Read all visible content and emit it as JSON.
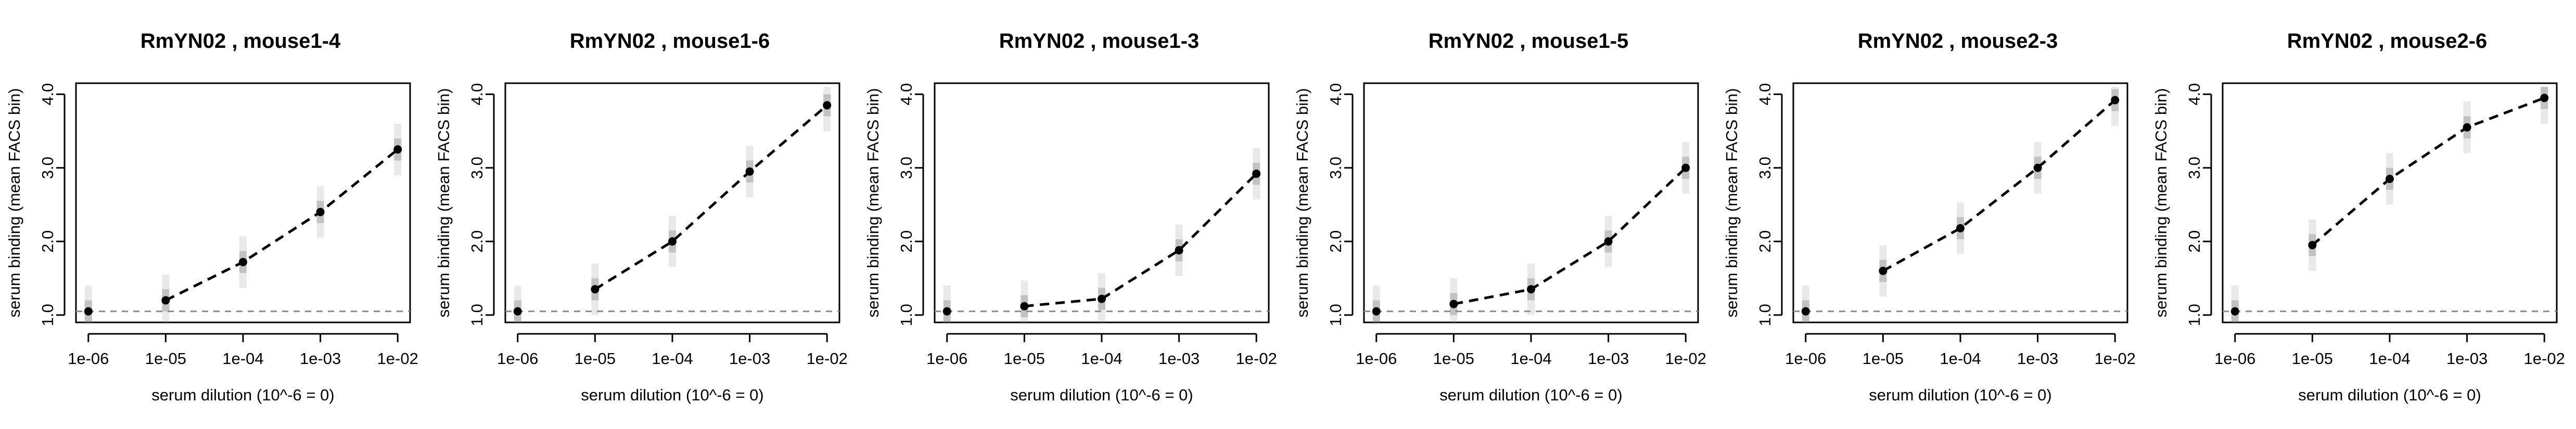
{
  "chart_data": [
    {
      "type": "line",
      "title": "RmYN02 , mouse1-4",
      "xlabel": "serum dilution (10^-6 = 0)",
      "ylabel": "serum binding (mean FACS bin)",
      "x": [
        1e-06,
        1e-05,
        0.0001,
        0.001,
        0.01
      ],
      "x_ticks": [
        "1e-06",
        "1e-05",
        "1e-04",
        "1e-03",
        "1e-02"
      ],
      "x_scale": "log",
      "y_ticks": [
        "1.0",
        "2.0",
        "3.0",
        "4.0"
      ],
      "ylim": [
        0.9,
        4.15
      ],
      "baseline": 1.05,
      "values": [
        1.05,
        1.2,
        1.72,
        2.4,
        3.25
      ]
    },
    {
      "type": "line",
      "title": "RmYN02 , mouse1-6",
      "xlabel": "serum dilution (10^-6 = 0)",
      "ylabel": "serum binding (mean FACS bin)",
      "x": [
        1e-06,
        1e-05,
        0.0001,
        0.001,
        0.01
      ],
      "x_ticks": [
        "1e-06",
        "1e-05",
        "1e-04",
        "1e-03",
        "1e-02"
      ],
      "x_scale": "log",
      "y_ticks": [
        "1.0",
        "2.0",
        "3.0",
        "4.0"
      ],
      "ylim": [
        0.9,
        4.15
      ],
      "baseline": 1.05,
      "values": [
        1.05,
        1.35,
        2.0,
        2.95,
        3.85
      ]
    },
    {
      "type": "line",
      "title": "RmYN02 , mouse1-3",
      "xlabel": "serum dilution (10^-6 = 0)",
      "ylabel": "serum binding (mean FACS bin)",
      "x": [
        1e-06,
        1e-05,
        0.0001,
        0.001,
        0.01
      ],
      "x_ticks": [
        "1e-06",
        "1e-05",
        "1e-04",
        "1e-03",
        "1e-02"
      ],
      "x_scale": "log",
      "y_ticks": [
        "1.0",
        "2.0",
        "3.0",
        "4.0"
      ],
      "ylim": [
        0.9,
        4.15
      ],
      "baseline": 1.05,
      "values": [
        1.05,
        1.12,
        1.22,
        1.88,
        2.92
      ]
    },
    {
      "type": "line",
      "title": "RmYN02 , mouse1-5",
      "xlabel": "serum dilution (10^-6 = 0)",
      "ylabel": "serum binding (mean FACS bin)",
      "x": [
        1e-06,
        1e-05,
        0.0001,
        0.001,
        0.01
      ],
      "x_ticks": [
        "1e-06",
        "1e-05",
        "1e-04",
        "1e-03",
        "1e-02"
      ],
      "x_scale": "log",
      "y_ticks": [
        "1.0",
        "2.0",
        "3.0",
        "4.0"
      ],
      "ylim": [
        0.9,
        4.15
      ],
      "baseline": 1.05,
      "values": [
        1.05,
        1.15,
        1.35,
        2.0,
        3.0
      ]
    },
    {
      "type": "line",
      "title": "RmYN02 , mouse2-3",
      "xlabel": "serum dilution (10^-6 = 0)",
      "ylabel": "serum binding (mean FACS bin)",
      "x": [
        1e-06,
        1e-05,
        0.0001,
        0.001,
        0.01
      ],
      "x_ticks": [
        "1e-06",
        "1e-05",
        "1e-04",
        "1e-03",
        "1e-02"
      ],
      "x_scale": "log",
      "y_ticks": [
        "1.0",
        "2.0",
        "3.0",
        "4.0"
      ],
      "ylim": [
        0.9,
        4.15
      ],
      "baseline": 1.05,
      "values": [
        1.05,
        1.6,
        2.18,
        3.0,
        3.92
      ]
    },
    {
      "type": "line",
      "title": "RmYN02 , mouse2-6",
      "xlabel": "serum dilution (10^-6 = 0)",
      "ylabel": "serum binding (mean FACS bin)",
      "x": [
        1e-06,
        1e-05,
        0.0001,
        0.001,
        0.01
      ],
      "x_ticks": [
        "1e-06",
        "1e-05",
        "1e-04",
        "1e-03",
        "1e-02"
      ],
      "x_scale": "log",
      "y_ticks": [
        "1.0",
        "2.0",
        "3.0",
        "4.0"
      ],
      "ylim": [
        0.9,
        4.15
      ],
      "baseline": 1.05,
      "values": [
        1.05,
        1.95,
        2.85,
        3.55,
        3.95
      ]
    }
  ]
}
